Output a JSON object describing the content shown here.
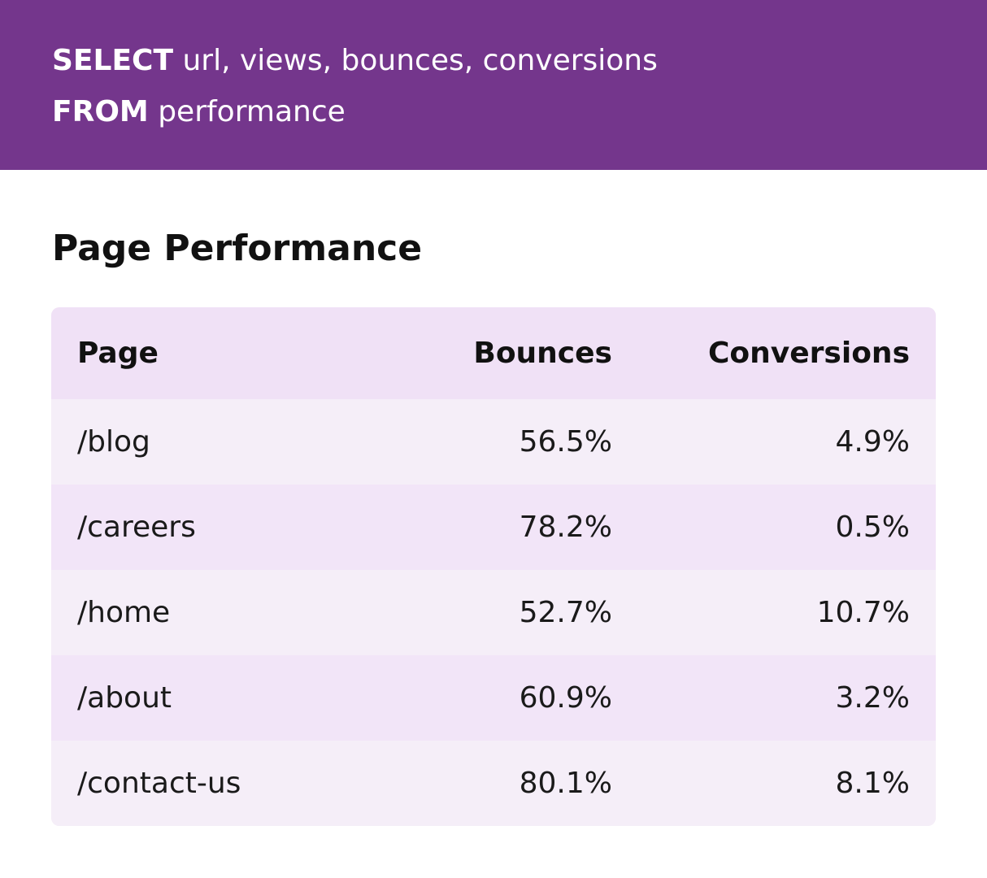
{
  "query": {
    "select_keyword": "SELECT",
    "select_fields": "url, views, bounces, conversions",
    "from_keyword": "FROM",
    "from_table": "performance"
  },
  "title": "Page Performance",
  "table": {
    "headers": {
      "page": "Page",
      "bounces": "Bounces",
      "conversions": "Conversions"
    },
    "rows": [
      {
        "page": "/blog",
        "bounces": "56.5%",
        "conversions": "4.9%"
      },
      {
        "page": "/careers",
        "bounces": "78.2%",
        "conversions": "0.5%"
      },
      {
        "page": "/home",
        "bounces": "52.7%",
        "conversions": "10.7%"
      },
      {
        "page": "/about",
        "bounces": "60.9%",
        "conversions": "3.2%"
      },
      {
        "page": "/contact-us",
        "bounces": "80.1%",
        "conversions": "8.1%"
      }
    ]
  },
  "colors": {
    "header_bg": "#74368c",
    "table_header_bg": "#f0e1f6",
    "row_odd_bg": "#f5eef8",
    "row_even_bg": "#f2e5f8"
  }
}
